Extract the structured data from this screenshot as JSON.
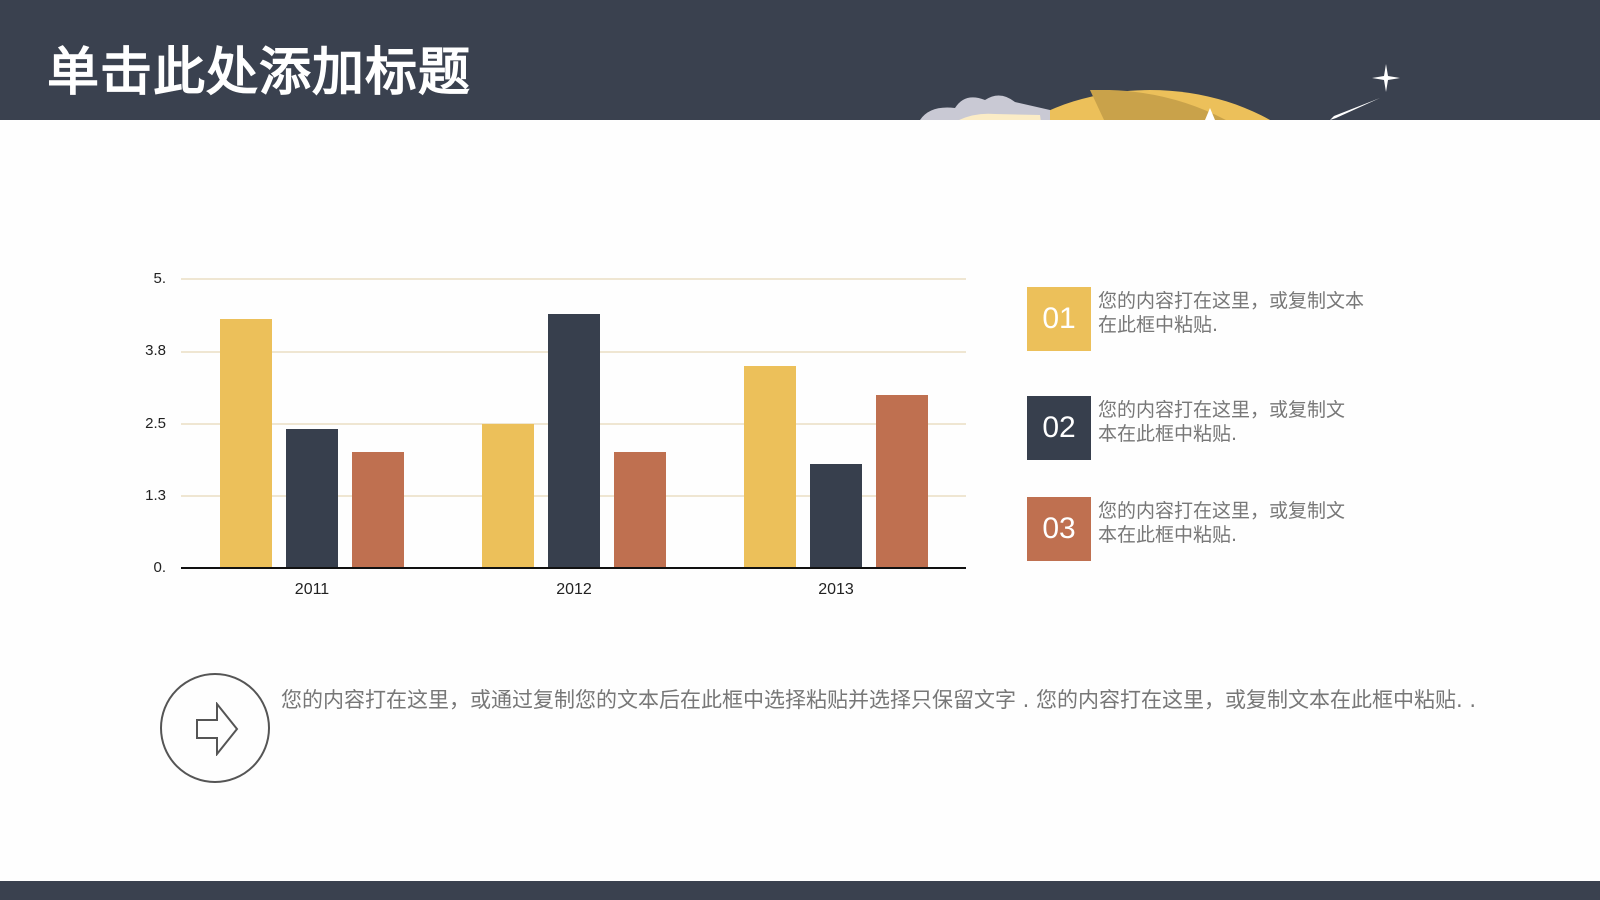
{
  "header": {
    "title": "单击此处添加标题"
  },
  "colors": {
    "header_bg": "#3a414f",
    "yellow": "#ecc05a",
    "dark": "#373f4d",
    "orange": "#bf7050",
    "gridline": "#efe6d2",
    "body_text": "#777777"
  },
  "chart_data": {
    "type": "bar",
    "title": "",
    "xlabel": "",
    "ylabel": "",
    "categories": [
      "2011",
      "2012",
      "2013"
    ],
    "series": [
      {
        "name": "01",
        "color": "#ecc05a",
        "values": [
          4.3,
          2.5,
          3.5
        ]
      },
      {
        "name": "02",
        "color": "#373f4d",
        "values": [
          2.4,
          4.4,
          1.8
        ]
      },
      {
        "name": "03",
        "color": "#bf7050",
        "values": [
          2.0,
          2.0,
          3.0
        ]
      }
    ],
    "yticks": [
      "0.",
      "1.3",
      "2.5",
      "3.8",
      "5."
    ],
    "ylim": [
      0,
      5
    ],
    "grid": true,
    "legend_position": "right"
  },
  "legend": [
    {
      "number": "01",
      "text": "您的内容打在这里，或复制文本在此框中粘贴."
    },
    {
      "number": "02",
      "text": "您的内容打在这里，或复制文本在此框中粘贴."
    },
    {
      "number": "03",
      "text": "您的内容打在这里，或复制文本在此框中粘贴."
    }
  ],
  "bottom": {
    "icon": "arrow-right-icon",
    "text": "您的内容打在这里，或通过复制您的文本后在此框中选择粘贴并选择只保留文字 . 您的内容打在这里，或复制文本在此框中粘贴. ."
  }
}
